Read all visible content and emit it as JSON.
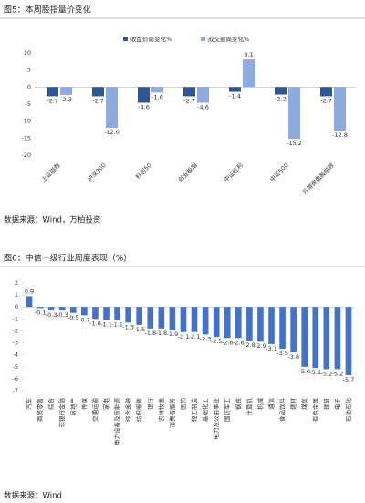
{
  "chart_data": [
    {
      "type": "bar",
      "title": "图5：本周股指量价变化",
      "source": "数据来源：Wind，万柏投资",
      "categories": [
        "上证指数",
        "沪深300",
        "科创50",
        "创业板指",
        "中证红利",
        "中证500",
        "万得微盘股指数"
      ],
      "series": [
        {
          "name": "收盘价周变化%",
          "color": "#2f5597",
          "values": [
            -2.7,
            -2.7,
            -4.6,
            -2.7,
            -1.4,
            -2.2,
            -2.7
          ]
        },
        {
          "name": "成交额周变化%",
          "color": "#8faadc",
          "values": [
            -2.3,
            -12.0,
            -1.6,
            -4.6,
            8.1,
            -15.2,
            -12.8
          ],
          "value_labels": [
            "-2.3",
            "-12.0",
            "-1.6",
            "-4.6",
            "8.1",
            "-15.2",
            "-12.8"
          ]
        }
      ],
      "ylim": [
        -20,
        10
      ],
      "yticks": [
        -20,
        -15,
        -10,
        -5,
        0,
        5,
        10
      ],
      "legend": "top"
    },
    {
      "type": "bar",
      "title": "图6：中信一级行业周度表现（%）",
      "source": "数据来源：Wind",
      "categories": [
        "汽车",
        "商贸零售",
        "综合",
        "非银行金融",
        "房地产",
        "传媒",
        "交通运输",
        "家电",
        "电力设备及新能源",
        "综合金融",
        "纺织服装",
        "银行",
        "农林牧渔",
        "消费者服务",
        "医药",
        "轻工制造",
        "基础化工",
        "电力及公用事业",
        "国防军工",
        "钢铁",
        "计算机",
        "机械",
        "通信",
        "食品饮料",
        "建材",
        "煤炭",
        "有色金属",
        "建筑",
        "电子",
        "石油石化"
      ],
      "values": [
        0.9,
        -0.1,
        -0.3,
        -0.3,
        -0.5,
        -0.7,
        -1.0,
        -1.1,
        -1.1,
        -1.3,
        -1.5,
        -1.8,
        -1.8,
        -1.9,
        -2.1,
        -2.1,
        -2.3,
        -2.5,
        -2.6,
        -2.6,
        -2.8,
        -2.9,
        -3.1,
        -3.5,
        -3.8,
        -5.0,
        -5.1,
        -5.2,
        -5.2,
        -5.7
      ],
      "value_labels": [
        "0.9",
        "-0.1",
        "-0.3",
        "-0.3",
        "-0.5",
        "-0.7",
        "-1.0",
        "-1.1",
        "-1.1",
        "-1.3",
        "-1.5",
        "-1.8",
        "-1.8",
        "-1.9",
        "-2.1",
        "-2.1",
        "-2.3",
        "-2.5",
        "-2.6",
        "-2.6",
        "-2.8",
        "-2.9",
        "-3.1",
        "-3.5",
        "-3.8",
        "-5.0",
        "-5.1",
        "-5.2",
        "-5.2",
        "-5.7"
      ],
      "color": "#4472c4",
      "ylim": [
        -7,
        2
      ],
      "yticks": [
        -7,
        -6,
        -5,
        -4,
        -3,
        -2,
        -1,
        0,
        1,
        2
      ]
    }
  ]
}
